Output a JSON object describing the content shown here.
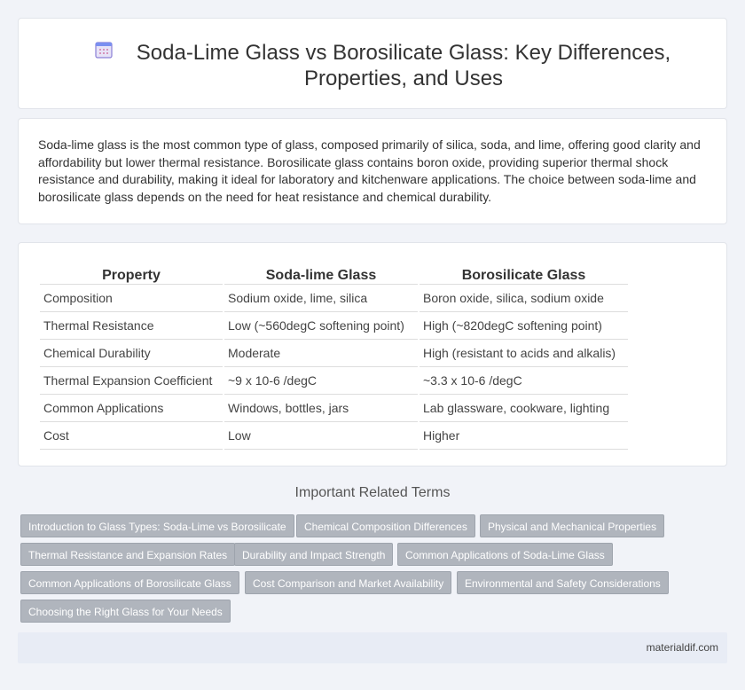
{
  "header": {
    "title": "Soda-Lime Glass vs Borosilicate Glass: Key Differences, Properties, and Uses",
    "icon": "calendar-icon"
  },
  "intro": {
    "text": "Soda-lime glass is the most common type of glass, composed primarily of silica, soda, and lime, offering good clarity and affordability but lower thermal resistance. Borosilicate glass contains boron oxide, providing superior thermal shock resistance and durability, making it ideal for laboratory and kitchenware applications. The choice between soda-lime and borosilicate glass depends on the need for heat resistance and chemical durability."
  },
  "table": {
    "headers": [
      "Property",
      "Soda-lime Glass",
      "Borosilicate Glass"
    ],
    "rows": [
      [
        "Composition",
        "Sodium oxide, lime, silica",
        "Boron oxide, silica, sodium oxide"
      ],
      [
        "Thermal Resistance",
        "Low (~560degC softening point)",
        "High (~820degC softening point)"
      ],
      [
        "Chemical Durability",
        "Moderate",
        "High (resistant to acids and alkalis)"
      ],
      [
        "Thermal Expansion Coefficient",
        "~9 x 10-6 /degC",
        "~3.3 x 10-6 /degC"
      ],
      [
        "Common Applications",
        "Windows, bottles, jars",
        "Lab glassware, cookware, lighting"
      ],
      [
        "Cost",
        "Low",
        "Higher"
      ]
    ]
  },
  "related": {
    "heading": "Important Related Terms",
    "tags": [
      "Introduction to Glass Types: Soda-Lime vs Borosilicate",
      "Chemical Composition Differences",
      "Physical and Mechanical Properties",
      "Thermal Resistance and Expansion Rates",
      "Durability and Impact Strength",
      "Common Applications of Soda-Lime Glass",
      "Common Applications of Borosilicate Glass",
      "Cost Comparison and Market Availability",
      "Environmental and Safety Considerations",
      "Choosing the Right Glass for Your Needs"
    ]
  },
  "footer": {
    "site": "materialdif.com"
  },
  "colors": {
    "background": "#f1f3f8",
    "tag": "#b0b5bd",
    "footer": "#e8ecf5"
  }
}
